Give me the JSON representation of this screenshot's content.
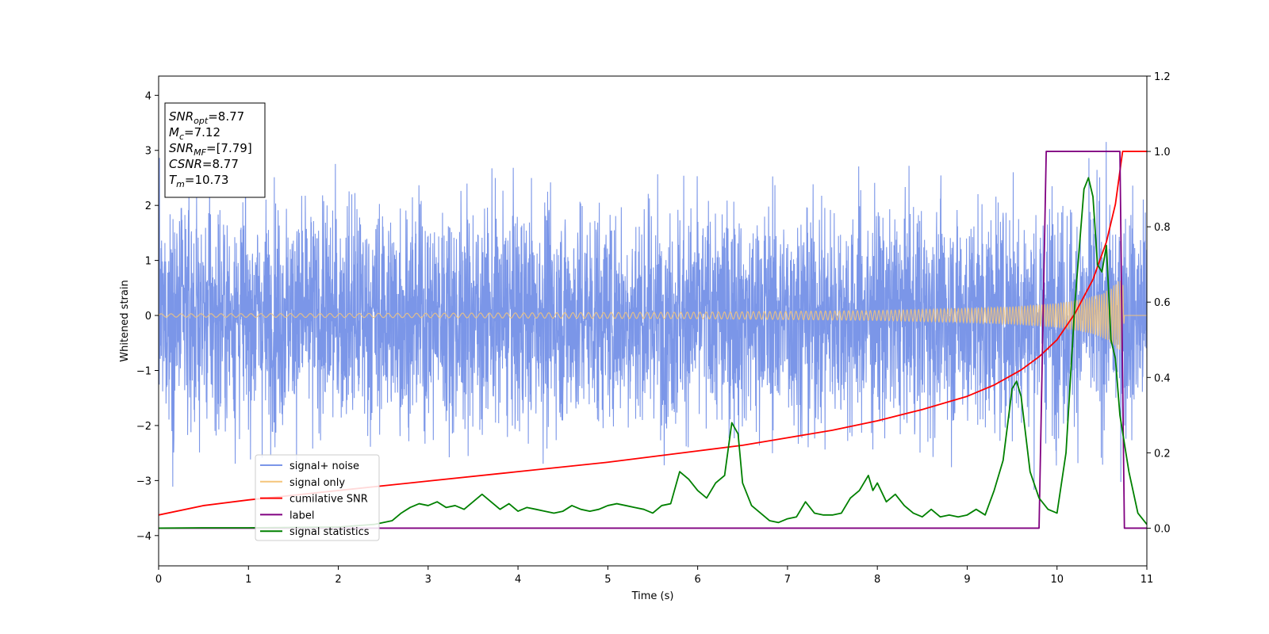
{
  "chart_data": {
    "type": "line",
    "title": "",
    "xlabel": "Time (s)",
    "ylabel": "Whitened strain",
    "xlim": [
      0,
      11
    ],
    "ylim": [
      -4.55,
      4.35
    ],
    "y2lim": [
      -0.1,
      1.2
    ],
    "x_ticks": [
      "0",
      "1",
      "2",
      "3",
      "4",
      "5",
      "6",
      "7",
      "8",
      "9",
      "10",
      "11"
    ],
    "y_ticks": [
      "−4",
      "−3",
      "−2",
      "−1",
      "0",
      "1",
      "2",
      "3",
      "4"
    ],
    "y2_ticks": [
      "0.0",
      "0.2",
      "0.4",
      "0.6",
      "0.8",
      "1.0",
      "1.2"
    ],
    "grid": false,
    "legend_position": "lower-left",
    "info_box": {
      "position": "top-left",
      "lines": [
        {
          "base": "SNR",
          "sub": "opt",
          "value": "=8.77"
        },
        {
          "base": "M",
          "sub": "c",
          "value": "=7.12"
        },
        {
          "base": "SNR",
          "sub": "MF",
          "value": "=[7.79]"
        },
        {
          "base": "CSNR",
          "sub": "",
          "value": "=8.77"
        },
        {
          "base": "T",
          "sub": "m",
          "value": "=10.73"
        }
      ]
    },
    "series": [
      {
        "name": "signal+ noise",
        "axis": "left",
        "color": "#7b96e8",
        "description_values": {
          "noise_sigma": 1.0,
          "max_abs_approx": 4.1,
          "x_range": [
            0,
            11
          ]
        }
      },
      {
        "name": "signal only",
        "axis": "left",
        "color": "#f5c57a",
        "envelope": {
          "x": [
            0,
            3,
            6,
            8,
            9,
            9.5,
            10,
            10.3,
            10.5,
            10.6,
            10.7,
            10.73,
            10.75,
            11
          ],
          "amplitude": [
            0.03,
            0.04,
            0.06,
            0.09,
            0.13,
            0.16,
            0.22,
            0.3,
            0.4,
            0.5,
            0.65,
            0.7,
            0,
            0
          ]
        }
      },
      {
        "name": "cumilative SNR",
        "axis": "right",
        "color": "#ff0000",
        "x": [
          0,
          0.5,
          1,
          2,
          3,
          4,
          5,
          6,
          6.5,
          7,
          7.5,
          8,
          8.5,
          9,
          9.3,
          9.6,
          9.8,
          10,
          10.2,
          10.4,
          10.55,
          10.65,
          10.73,
          10.8,
          11
        ],
        "y": [
          0.035,
          0.06,
          0.075,
          0.1,
          0.125,
          0.15,
          0.175,
          0.205,
          0.22,
          0.24,
          0.26,
          0.285,
          0.315,
          0.35,
          0.38,
          0.42,
          0.455,
          0.5,
          0.57,
          0.66,
          0.76,
          0.86,
          1.0,
          1.0,
          1.0
        ]
      },
      {
        "name": "label",
        "axis": "right",
        "color": "#800080",
        "x": [
          0,
          9.8,
          9.88,
          10.7,
          10.75,
          11
        ],
        "y": [
          0,
          0,
          1,
          1,
          0,
          0
        ]
      },
      {
        "name": "signal statistics",
        "axis": "right",
        "color": "#008000",
        "x": [
          0,
          0.5,
          1,
          1.5,
          2,
          2.4,
          2.6,
          2.7,
          2.8,
          2.9,
          3.0,
          3.1,
          3.2,
          3.3,
          3.4,
          3.5,
          3.6,
          3.7,
          3.8,
          3.9,
          4.0,
          4.1,
          4.2,
          4.3,
          4.4,
          4.5,
          4.6,
          4.7,
          4.8,
          4.9,
          5.0,
          5.1,
          5.2,
          5.3,
          5.4,
          5.5,
          5.6,
          5.7,
          5.8,
          5.85,
          5.9,
          6.0,
          6.1,
          6.2,
          6.3,
          6.38,
          6.45,
          6.5,
          6.6,
          6.8,
          6.9,
          7.0,
          7.1,
          7.2,
          7.3,
          7.4,
          7.5,
          7.6,
          7.7,
          7.8,
          7.9,
          7.95,
          8.0,
          8.1,
          8.2,
          8.3,
          8.4,
          8.5,
          8.6,
          8.7,
          8.8,
          8.9,
          9.0,
          9.1,
          9.2,
          9.3,
          9.4,
          9.5,
          9.55,
          9.6,
          9.7,
          9.8,
          9.9,
          10.0,
          10.1,
          10.2,
          10.3,
          10.35,
          10.4,
          10.45,
          10.5,
          10.55,
          10.6,
          10.65,
          10.7,
          10.8,
          10.9,
          11.0
        ],
        "y": [
          0.0,
          0.001,
          0.001,
          0.002,
          0.003,
          0.01,
          0.02,
          0.04,
          0.055,
          0.065,
          0.06,
          0.07,
          0.055,
          0.06,
          0.05,
          0.07,
          0.09,
          0.07,
          0.05,
          0.065,
          0.045,
          0.055,
          0.05,
          0.045,
          0.04,
          0.045,
          0.06,
          0.05,
          0.045,
          0.05,
          0.06,
          0.065,
          0.06,
          0.055,
          0.05,
          0.04,
          0.06,
          0.065,
          0.15,
          0.14,
          0.13,
          0.1,
          0.08,
          0.12,
          0.14,
          0.28,
          0.25,
          0.12,
          0.06,
          0.02,
          0.015,
          0.025,
          0.03,
          0.07,
          0.04,
          0.035,
          0.035,
          0.04,
          0.08,
          0.1,
          0.14,
          0.1,
          0.12,
          0.07,
          0.09,
          0.06,
          0.04,
          0.03,
          0.05,
          0.03,
          0.035,
          0.03,
          0.035,
          0.05,
          0.035,
          0.1,
          0.18,
          0.37,
          0.39,
          0.35,
          0.15,
          0.08,
          0.05,
          0.04,
          0.2,
          0.6,
          0.9,
          0.93,
          0.88,
          0.7,
          0.68,
          0.75,
          0.5,
          0.45,
          0.3,
          0.15,
          0.04,
          0.01
        ]
      }
    ]
  }
}
